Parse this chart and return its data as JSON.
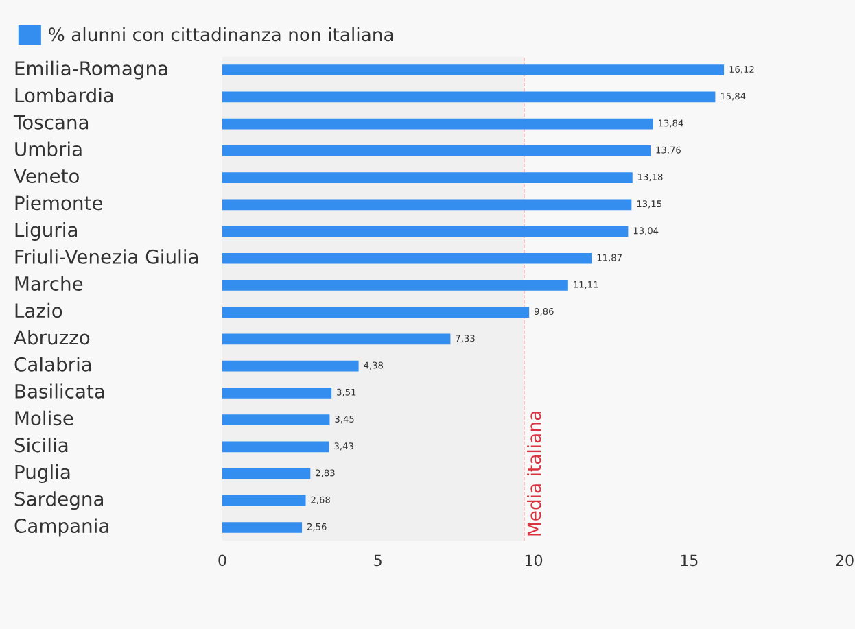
{
  "chart_data": {
    "type": "bar",
    "orientation": "horizontal",
    "categories": [
      "Emilia-Romagna",
      "Lombardia",
      "Toscana",
      "Umbria",
      "Veneto",
      "Piemonte",
      "Liguria",
      "Friuli-Venezia Giulia",
      "Marche",
      "Lazio",
      "Abruzzo",
      "Calabria",
      "Basilicata",
      "Molise",
      "Sicilia",
      "Puglia",
      "Sardegna",
      "Campania"
    ],
    "series": [
      {
        "name": "% alunni con cittadinanza non italiana",
        "color": "#338ef0",
        "values": [
          16.12,
          15.84,
          13.84,
          13.76,
          13.18,
          13.15,
          13.04,
          11.87,
          11.11,
          9.86,
          7.33,
          4.38,
          3.51,
          3.45,
          3.43,
          2.83,
          2.68,
          2.56
        ]
      }
    ],
    "value_labels": [
      "16,12",
      "15,84",
      "13,84",
      "13,76",
      "13,18",
      "13,15",
      "13,04",
      "11,87",
      "11,11",
      "9,86",
      "7,33",
      "4,38",
      "3,51",
      "3,45",
      "3,43",
      "2,83",
      "2,68",
      "2,56"
    ],
    "xlim": [
      0,
      20
    ],
    "xticks": [
      0,
      5,
      10,
      15,
      20
    ],
    "ref_lines": [
      {
        "axis": "x",
        "value": 9.7,
        "label": "Media italiana",
        "color": "#f4a6ad",
        "line_style": "dashed"
      }
    ],
    "bands": [
      {
        "axis": "x",
        "from": 0,
        "to": 9.7,
        "color": "#f0f0f0"
      }
    ],
    "grid": false,
    "legend": "top left"
  }
}
